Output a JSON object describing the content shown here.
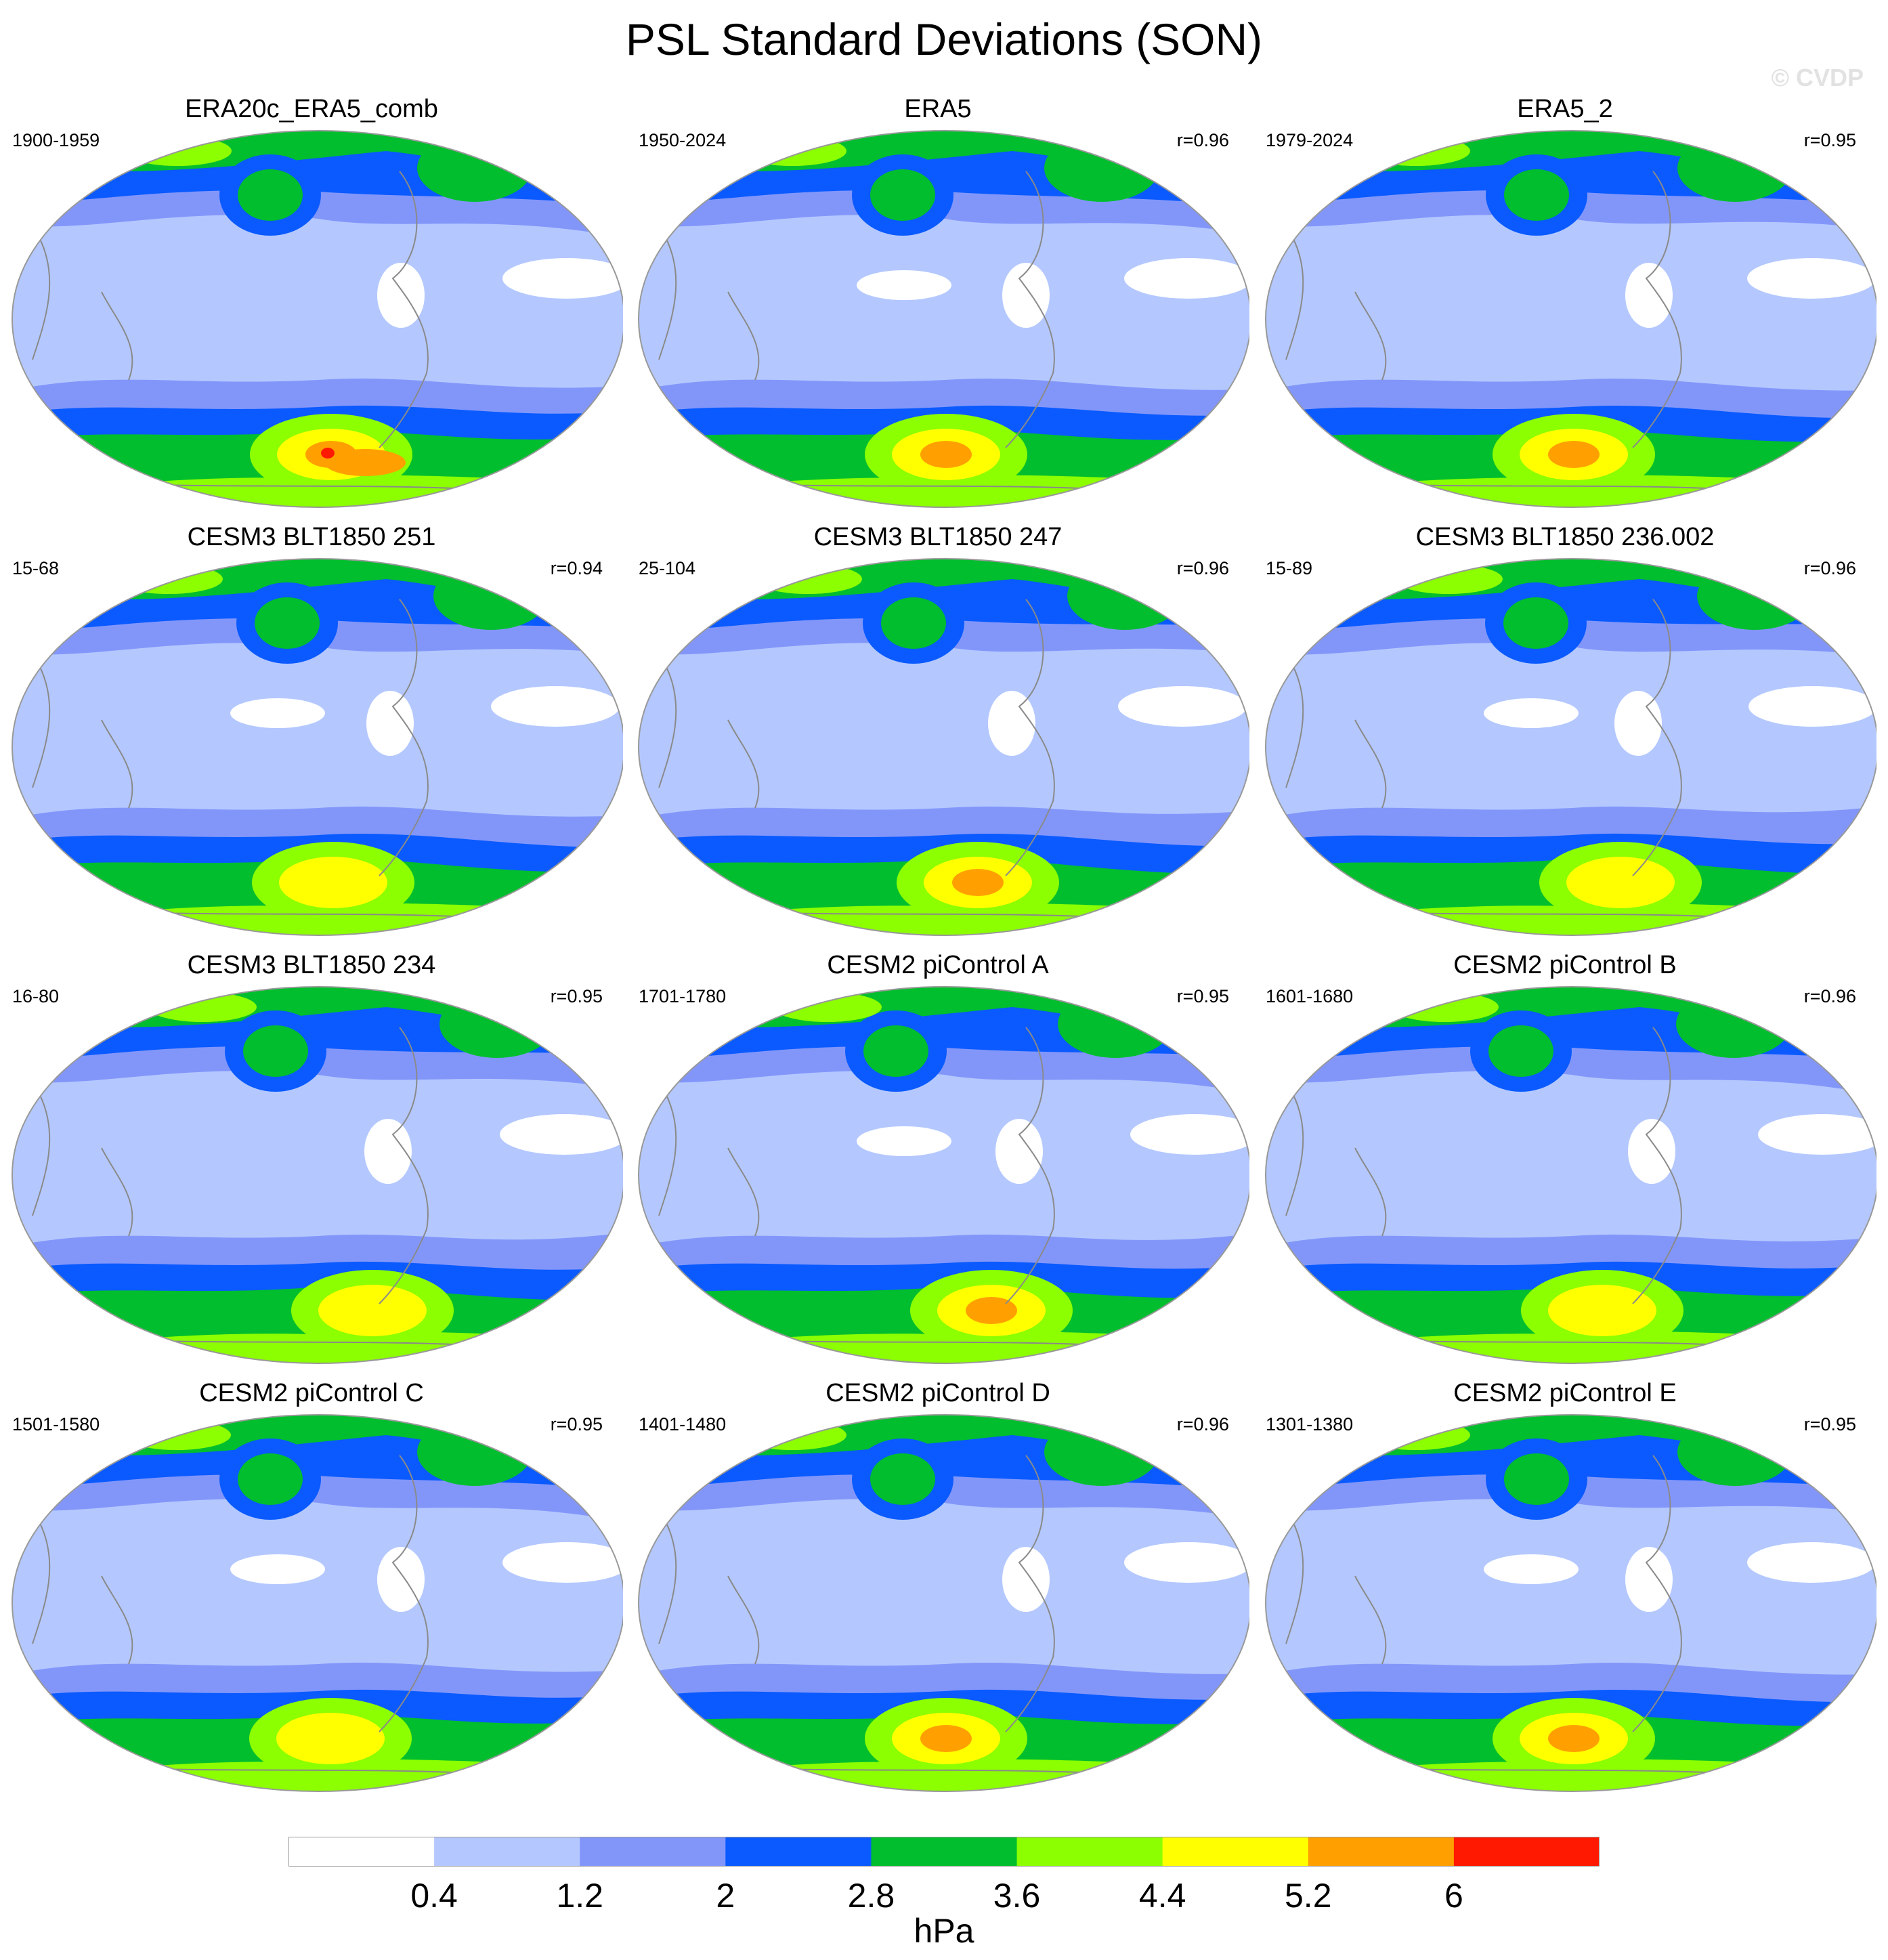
{
  "title": "PSL Standard Deviations (SON)",
  "watermark": "© CVDP",
  "colorbar": {
    "unit": "hPa",
    "ticks": [
      "0.4",
      "1.2",
      "2",
      "2.8",
      "3.6",
      "4.4",
      "5.2",
      "6"
    ],
    "levels": [
      0.4,
      1.2,
      2,
      2.8,
      3.6,
      4.4,
      5.2,
      6
    ],
    "colors": [
      "#ffffff",
      "#b4c8ff",
      "#8296fa",
      "#0a5aff",
      "#00be2d",
      "#8cff00",
      "#ffff00",
      "#ffa000",
      "#ff1900"
    ]
  },
  "panels": [
    {
      "title": "ERA20c_ERA5_comb",
      "years": "1900-1959",
      "r": "",
      "max_level": 8
    },
    {
      "title": "ERA5",
      "years": "1950-2024",
      "r": "r=0.96",
      "max_level": 7
    },
    {
      "title": "ERA5_2",
      "years": "1979-2024",
      "r": "r=0.95",
      "max_level": 7
    },
    {
      "title": "CESM3 BLT1850 251",
      "years": "15-68",
      "r": "r=0.94",
      "max_level": 6
    },
    {
      "title": "CESM3 BLT1850 247",
      "years": "25-104",
      "r": "r=0.96",
      "max_level": 7
    },
    {
      "title": "CESM3 BLT1850 236.002",
      "years": "15-89",
      "r": "r=0.96",
      "max_level": 6
    },
    {
      "title": "CESM3 BLT1850 234",
      "years": "16-80",
      "r": "r=0.95",
      "max_level": 6
    },
    {
      "title": "CESM2 piControl A",
      "years": "1701-1780",
      "r": "r=0.95",
      "max_level": 7
    },
    {
      "title": "CESM2 piControl B",
      "years": "1601-1680",
      "r": "r=0.96",
      "max_level": 6
    },
    {
      "title": "CESM2 piControl C",
      "years": "1501-1580",
      "r": "r=0.95",
      "max_level": 6
    },
    {
      "title": "CESM2 piControl D",
      "years": "1401-1480",
      "r": "r=0.96",
      "max_level": 7
    },
    {
      "title": "CESM2 piControl E",
      "years": "1301-1380",
      "r": "r=0.95",
      "max_level": 7
    }
  ]
}
